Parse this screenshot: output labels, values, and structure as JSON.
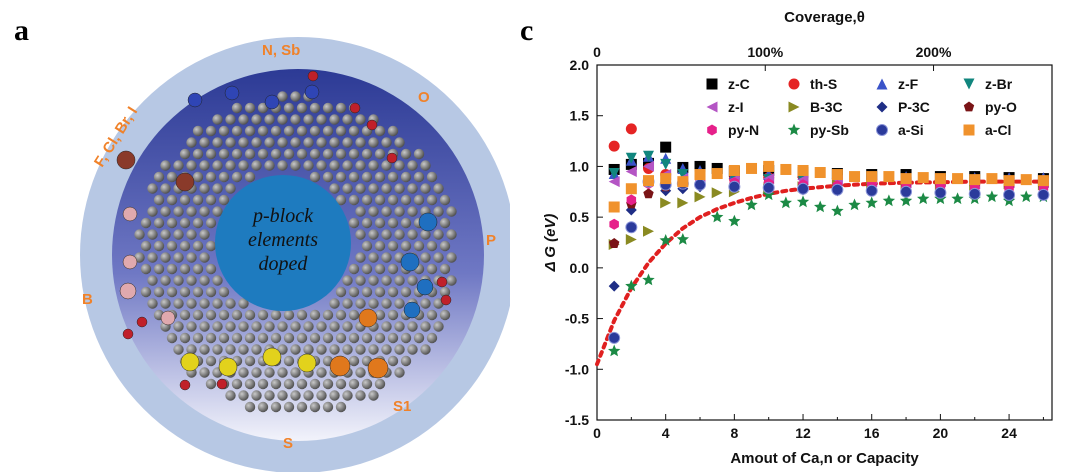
{
  "panel_a": {
    "letter": "a",
    "center_text": [
      "p-block",
      "elements",
      "doped"
    ],
    "ring_labels": [
      "N, Sb",
      "O",
      "P",
      "S1",
      "S",
      "B",
      "F, Cl, Br, I"
    ],
    "colors": {
      "outer_ring": "#b7c8e4",
      "inner_top": "#2c3a95",
      "inner_bottom": "#eef0fa",
      "center_disk": "#1e7bbf",
      "label": "#f0822a"
    }
  },
  "panel_c": {
    "letter": "c"
  },
  "chart_data": {
    "type": "scatter",
    "title": "",
    "xlabel": "Amout of Ca,n or Capacity",
    "ylabel": "Δ G (eV)",
    "top_xlabel": "Coverage,θ",
    "xlim": [
      0,
      26.5
    ],
    "ylim": [
      -1.5,
      2.0
    ],
    "xticks": [
      0,
      4,
      8,
      12,
      16,
      20,
      24
    ],
    "yticks": [
      "-1.5",
      "-1.0",
      "-0.5",
      "0.0",
      "0.5",
      "1.0",
      "1.5",
      "2.0"
    ],
    "top_ticks": [
      {
        "label": "0",
        "x": 0
      },
      {
        "label": "100%",
        "x": 9.8
      },
      {
        "label": "200%",
        "x": 19.6
      }
    ],
    "fit_curve": {
      "name": "fit",
      "color": "#e02020",
      "style": "dotted",
      "x": [
        0,
        1,
        2,
        3,
        4,
        5,
        6,
        7,
        8,
        9,
        10,
        11,
        12,
        14,
        16,
        18,
        20,
        22,
        24,
        26
      ],
      "y": [
        -0.95,
        -0.52,
        -0.2,
        0.05,
        0.24,
        0.39,
        0.5,
        0.58,
        0.64,
        0.69,
        0.73,
        0.76,
        0.78,
        0.81,
        0.83,
        0.84,
        0.845,
        0.85,
        0.85,
        0.85
      ]
    },
    "series": [
      {
        "name": "z-C",
        "marker": "square",
        "color": "#000000",
        "points": [
          [
            1,
            0.97
          ],
          [
            2,
            1.02
          ],
          [
            3,
            1.03
          ],
          [
            4,
            1.19
          ],
          [
            5,
            0.99
          ],
          [
            6,
            1.0
          ],
          [
            7,
            0.98
          ],
          [
            8,
            0.95
          ],
          [
            10,
            0.96
          ],
          [
            12,
            0.94
          ],
          [
            14,
            0.93
          ],
          [
            16,
            0.92
          ],
          [
            18,
            0.92
          ],
          [
            20,
            0.9
          ],
          [
            22,
            0.9
          ],
          [
            24,
            0.89
          ],
          [
            26,
            0.88
          ]
        ]
      },
      {
        "name": "th-S",
        "marker": "circle",
        "color": "#e52424",
        "points": [
          [
            1,
            1.2
          ],
          [
            2,
            1.37
          ],
          [
            3,
            0.98
          ],
          [
            4,
            0.92
          ],
          [
            6,
            0.9
          ],
          [
            8,
            0.88
          ],
          [
            10,
            0.89
          ],
          [
            12,
            0.9
          ],
          [
            14,
            0.88
          ],
          [
            16,
            0.87
          ],
          [
            18,
            0.87
          ],
          [
            20,
            0.86
          ],
          [
            22,
            0.86
          ],
          [
            24,
            0.86
          ],
          [
            26,
            0.86
          ]
        ]
      },
      {
        "name": "z-F",
        "marker": "triangle-up",
        "color": "#3a53c9",
        "points": [
          [
            1,
            0.93
          ],
          [
            2,
            1.06
          ],
          [
            3,
            1.1
          ],
          [
            4,
            1.08
          ],
          [
            5,
            0.98
          ],
          [
            6,
            0.96
          ],
          [
            8,
            0.93
          ],
          [
            10,
            0.92
          ],
          [
            12,
            0.92
          ],
          [
            14,
            0.9
          ],
          [
            16,
            0.89
          ],
          [
            18,
            0.9
          ],
          [
            20,
            0.88
          ],
          [
            22,
            0.89
          ],
          [
            24,
            0.89
          ],
          [
            26,
            0.89
          ]
        ]
      },
      {
        "name": "z-Br",
        "marker": "triangle-down",
        "color": "#11867e",
        "points": [
          [
            1,
            0.93
          ],
          [
            2,
            1.08
          ],
          [
            3,
            1.1
          ],
          [
            4,
            1.02
          ],
          [
            5,
            0.92
          ],
          [
            6,
            0.9
          ],
          [
            8,
            0.88
          ],
          [
            10,
            0.87
          ],
          [
            12,
            0.86
          ],
          [
            14,
            0.86
          ],
          [
            16,
            0.85
          ],
          [
            18,
            0.84
          ],
          [
            20,
            0.84
          ],
          [
            22,
            0.84
          ],
          [
            24,
            0.83
          ],
          [
            26,
            0.83
          ]
        ]
      },
      {
        "name": "z-I",
        "marker": "triangle-left",
        "color": "#b455c4",
        "points": [
          [
            1,
            0.85
          ],
          [
            2,
            0.95
          ],
          [
            3,
            1.0
          ],
          [
            4,
            0.92
          ],
          [
            5,
            0.88
          ],
          [
            6,
            0.88
          ],
          [
            8,
            0.87
          ],
          [
            10,
            0.88
          ],
          [
            12,
            0.87
          ],
          [
            14,
            0.86
          ],
          [
            16,
            0.85
          ],
          [
            18,
            0.84
          ],
          [
            20,
            0.85
          ],
          [
            22,
            0.83
          ],
          [
            24,
            0.84
          ],
          [
            26,
            0.84
          ]
        ]
      },
      {
        "name": "B-3C",
        "marker": "triangle-right",
        "color": "#8a8a22",
        "points": [
          [
            1,
            0.23
          ],
          [
            2,
            0.28
          ],
          [
            3,
            0.36
          ],
          [
            4,
            0.64
          ],
          [
            5,
            0.64
          ],
          [
            6,
            0.7
          ],
          [
            7,
            0.74
          ],
          [
            8,
            0.75
          ],
          [
            10,
            0.78
          ],
          [
            12,
            0.8
          ],
          [
            14,
            0.82
          ],
          [
            16,
            0.82
          ],
          [
            18,
            0.83
          ],
          [
            20,
            0.82
          ],
          [
            22,
            0.82
          ],
          [
            24,
            0.83
          ],
          [
            26,
            0.82
          ]
        ]
      },
      {
        "name": "P-3C",
        "marker": "diamond",
        "color": "#1f2e86",
        "points": [
          [
            1,
            -0.18
          ],
          [
            2,
            0.57
          ],
          [
            3,
            0.83
          ],
          [
            4,
            0.76
          ],
          [
            5,
            0.78
          ],
          [
            6,
            0.8
          ],
          [
            8,
            0.8
          ],
          [
            10,
            0.78
          ],
          [
            12,
            0.77
          ],
          [
            14,
            0.76
          ],
          [
            16,
            0.76
          ],
          [
            18,
            0.75
          ],
          [
            20,
            0.75
          ],
          [
            22,
            0.76
          ],
          [
            24,
            0.74
          ],
          [
            26,
            0.74
          ]
        ]
      },
      {
        "name": "py-O",
        "marker": "pentagon",
        "color": "#7a1416",
        "points": [
          [
            1,
            0.24
          ],
          [
            2,
            0.63
          ],
          [
            3,
            0.73
          ],
          [
            4,
            0.8
          ],
          [
            6,
            0.82
          ],
          [
            8,
            0.82
          ],
          [
            10,
            0.83
          ],
          [
            12,
            0.81
          ],
          [
            14,
            0.8
          ],
          [
            16,
            0.81
          ],
          [
            18,
            0.8
          ],
          [
            20,
            0.8
          ],
          [
            22,
            0.8
          ],
          [
            24,
            0.79
          ],
          [
            26,
            0.79
          ]
        ]
      },
      {
        "name": "py-N",
        "marker": "hexagon",
        "color": "#e6208a",
        "points": [
          [
            1,
            0.43
          ],
          [
            2,
            0.67
          ],
          [
            3,
            0.83
          ],
          [
            4,
            0.84
          ],
          [
            5,
            0.84
          ],
          [
            6,
            0.84
          ],
          [
            8,
            0.84
          ],
          [
            10,
            0.83
          ],
          [
            12,
            0.82
          ],
          [
            14,
            0.81
          ],
          [
            16,
            0.82
          ],
          [
            18,
            0.8
          ],
          [
            20,
            0.8
          ],
          [
            22,
            0.8
          ],
          [
            24,
            0.79
          ],
          [
            26,
            0.79
          ]
        ]
      },
      {
        "name": "py-Sb",
        "marker": "star",
        "color": "#1c8a45",
        "points": [
          [
            1,
            -0.82
          ],
          [
            2,
            -0.18
          ],
          [
            3,
            -0.12
          ],
          [
            4,
            0.27
          ],
          [
            5,
            0.28
          ],
          [
            7,
            0.5
          ],
          [
            8,
            0.46
          ],
          [
            9,
            0.62
          ],
          [
            10,
            0.72
          ],
          [
            11,
            0.64
          ],
          [
            12,
            0.65
          ],
          [
            13,
            0.6
          ],
          [
            14,
            0.56
          ],
          [
            15,
            0.62
          ],
          [
            16,
            0.64
          ],
          [
            17,
            0.66
          ],
          [
            18,
            0.66
          ],
          [
            19,
            0.68
          ],
          [
            20,
            0.68
          ],
          [
            21,
            0.68
          ],
          [
            22,
            0.68
          ],
          [
            23,
            0.7
          ],
          [
            24,
            0.66
          ],
          [
            25,
            0.7
          ],
          [
            26,
            0.7
          ]
        ]
      },
      {
        "name": "a-Si",
        "marker": "sphere",
        "color": "#2b3a9b",
        "points": [
          [
            1,
            -0.69
          ],
          [
            2,
            0.4
          ],
          [
            3,
            0.85
          ],
          [
            4,
            0.82
          ],
          [
            5,
            0.83
          ],
          [
            6,
            0.82
          ],
          [
            8,
            0.8
          ],
          [
            10,
            0.79
          ],
          [
            12,
            0.78
          ],
          [
            14,
            0.77
          ],
          [
            16,
            0.76
          ],
          [
            18,
            0.75
          ],
          [
            20,
            0.74
          ],
          [
            22,
            0.73
          ],
          [
            24,
            0.72
          ],
          [
            26,
            0.72
          ]
        ]
      },
      {
        "name": "a-Cl",
        "marker": "square",
        "color": "#f0922c",
        "points": [
          [
            1,
            0.6
          ],
          [
            2,
            0.78
          ],
          [
            3,
            0.86
          ],
          [
            4,
            0.88
          ],
          [
            5,
            0.85
          ],
          [
            6,
            0.92
          ],
          [
            7,
            0.93
          ],
          [
            8,
            0.96
          ],
          [
            9,
            0.98
          ],
          [
            10,
            1.0
          ],
          [
            11,
            0.97
          ],
          [
            12,
            0.96
          ],
          [
            13,
            0.94
          ],
          [
            14,
            0.92
          ],
          [
            15,
            0.9
          ],
          [
            16,
            0.9
          ],
          [
            17,
            0.9
          ],
          [
            18,
            0.88
          ],
          [
            19,
            0.89
          ],
          [
            20,
            0.88
          ],
          [
            21,
            0.88
          ],
          [
            22,
            0.87
          ],
          [
            23,
            0.88
          ],
          [
            24,
            0.86
          ],
          [
            25,
            0.87
          ],
          [
            26,
            0.86
          ]
        ]
      }
    ]
  }
}
